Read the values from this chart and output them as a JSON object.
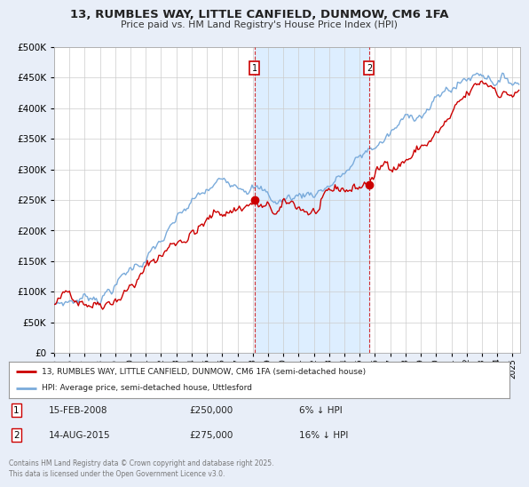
{
  "title": "13, RUMBLES WAY, LITTLE CANFIELD, DUNMOW, CM6 1FA",
  "subtitle": "Price paid vs. HM Land Registry's House Price Index (HPI)",
  "ytick_values": [
    0,
    50000,
    100000,
    150000,
    200000,
    250000,
    300000,
    350000,
    400000,
    450000,
    500000
  ],
  "ylim": [
    0,
    500000
  ],
  "xlim_start": 1995.0,
  "xlim_end": 2025.5,
  "background_color": "#e8eef8",
  "plot_bg_color": "#ffffff",
  "grid_color": "#cccccc",
  "red_line_color": "#cc0000",
  "blue_line_color": "#7aabdb",
  "shade_color": "#ddeeff",
  "marker1_x": 2008.12,
  "marker1_y": 250000,
  "marker2_x": 2015.62,
  "marker2_y": 275000,
  "marker1_label": "1",
  "marker2_label": "2",
  "marker1_date": "15-FEB-2008",
  "marker1_price": "£250,000",
  "marker1_hpi": "6% ↓ HPI",
  "marker2_date": "14-AUG-2015",
  "marker2_price": "£275,000",
  "marker2_hpi": "16% ↓ HPI",
  "legend_label_red": "13, RUMBLES WAY, LITTLE CANFIELD, DUNMOW, CM6 1FA (semi-detached house)",
  "legend_label_blue": "HPI: Average price, semi-detached house, Uttlesford",
  "footnote": "Contains HM Land Registry data © Crown copyright and database right 2025.\nThis data is licensed under the Open Government Licence v3.0.",
  "xtick_years": [
    1995,
    1996,
    1997,
    1998,
    1999,
    2000,
    2001,
    2002,
    2003,
    2004,
    2005,
    2006,
    2007,
    2008,
    2009,
    2010,
    2011,
    2012,
    2013,
    2014,
    2015,
    2016,
    2017,
    2018,
    2019,
    2020,
    2021,
    2022,
    2023,
    2024,
    2025
  ]
}
